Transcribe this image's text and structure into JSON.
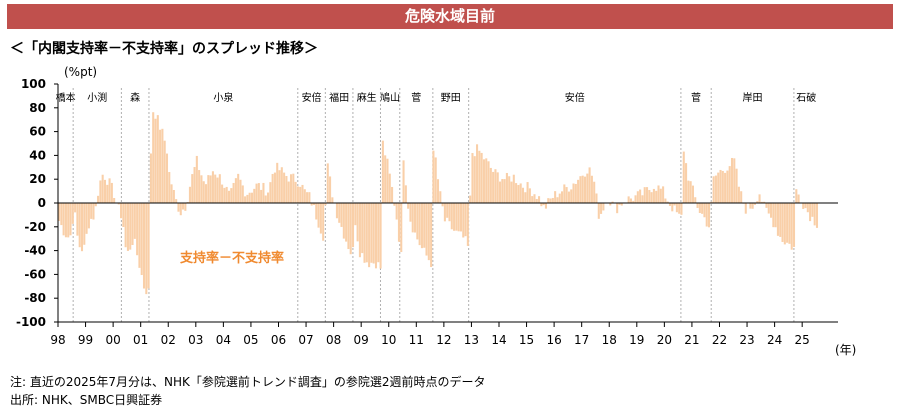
{
  "header": {
    "title": "危険水域目前"
  },
  "subtitle": "＜「内閣支持率－不支持率」のスプレッド推移＞",
  "notes": {
    "note1": "注: 直近の2025年7月分は、NHK「参院選前トレンド調査」の参院選2週前時点のデータ",
    "note2": "出所: NHK、SMBC日興証券"
  },
  "colors": {
    "header_bg": "#c0504d",
    "bar": "#f9cfa8",
    "annotation": "#f08a30",
    "divider": "#b0b0b0"
  },
  "chart_data": {
    "type": "bar",
    "title": "＜「内閣支持率－不支持率」のスプレッド推移＞",
    "ylabel": "(%pt)",
    "xlabel": "(年)",
    "ylim": [
      -100,
      100
    ],
    "yticks": [
      100,
      80,
      60,
      40,
      20,
      0,
      -20,
      -40,
      -60,
      -80,
      -100
    ],
    "xlim": [
      1998.0,
      2026.3
    ],
    "xtick_values": [
      1998,
      1999,
      2000,
      2001,
      2002,
      2003,
      2004,
      2005,
      2006,
      2007,
      2008,
      2009,
      2010,
      2011,
      2012,
      2013,
      2014,
      2015,
      2016,
      2017,
      2018,
      2019,
      2020,
      2021,
      2022,
      2023,
      2024,
      2025
    ],
    "xtick_labels": [
      "98",
      "99",
      "00",
      "01",
      "02",
      "03",
      "04",
      "05",
      "06",
      "07",
      "08",
      "09",
      "10",
      "11",
      "12",
      "13",
      "14",
      "15",
      "16",
      "17",
      "18",
      "19",
      "20",
      "21",
      "22",
      "23",
      "24",
      "25"
    ],
    "annotation": "支持率－不支持率",
    "eras": [
      {
        "name": "橋本",
        "start": 1998.0,
        "end": 1998.55
      },
      {
        "name": "小渕",
        "start": 1998.55,
        "end": 2000.3
      },
      {
        "name": "森",
        "start": 2000.3,
        "end": 2001.3
      },
      {
        "name": "小泉",
        "start": 2001.3,
        "end": 2006.7
      },
      {
        "name": "安倍",
        "start": 2006.7,
        "end": 2007.7
      },
      {
        "name": "福田",
        "start": 2007.7,
        "end": 2008.7
      },
      {
        "name": "麻生",
        "start": 2008.7,
        "end": 2009.7
      },
      {
        "name": "鳩山",
        "start": 2009.7,
        "end": 2010.4
      },
      {
        "name": "菅",
        "start": 2010.4,
        "end": 2011.6
      },
      {
        "name": "野田",
        "start": 2011.6,
        "end": 2012.9
      },
      {
        "name": "安倍",
        "start": 2012.9,
        "end": 2020.6
      },
      {
        "name": "菅",
        "start": 2020.6,
        "end": 2021.7
      },
      {
        "name": "岸田",
        "start": 2021.7,
        "end": 2024.7
      },
      {
        "name": "石破",
        "start": 2024.7,
        "end": 2025.6
      }
    ],
    "series": [
      {
        "name": "支持率－不支持率",
        "keypoints": [
          [
            1998.0,
            -15
          ],
          [
            1998.2,
            -25
          ],
          [
            1998.4,
            -30
          ],
          [
            1998.55,
            -5
          ],
          [
            1998.7,
            -35
          ],
          [
            1998.9,
            -40
          ],
          [
            1999.1,
            -15
          ],
          [
            1999.3,
            -10
          ],
          [
            1999.45,
            15
          ],
          [
            1999.6,
            25
          ],
          [
            1999.8,
            18
          ],
          [
            2000.0,
            8
          ],
          [
            2000.15,
            -5
          ],
          [
            2000.3,
            -12
          ],
          [
            2000.45,
            -45
          ],
          [
            2000.7,
            -30
          ],
          [
            2000.9,
            -50
          ],
          [
            2001.1,
            -72
          ],
          [
            2001.28,
            -75
          ],
          [
            2001.35,
            80
          ],
          [
            2001.5,
            75
          ],
          [
            2001.7,
            62
          ],
          [
            2001.9,
            48
          ],
          [
            2002.0,
            25
          ],
          [
            2002.2,
            5
          ],
          [
            2002.4,
            -8
          ],
          [
            2002.6,
            -2
          ],
          [
            2002.8,
            20
          ],
          [
            2003.0,
            35
          ],
          [
            2003.3,
            15
          ],
          [
            2003.6,
            28
          ],
          [
            2003.9,
            20
          ],
          [
            2004.2,
            5
          ],
          [
            2004.5,
            22
          ],
          [
            2004.8,
            8
          ],
          [
            2005.2,
            15
          ],
          [
            2005.6,
            10
          ],
          [
            2005.8,
            30
          ],
          [
            2006.0,
            28
          ],
          [
            2006.3,
            22
          ],
          [
            2006.6,
            20
          ],
          [
            2006.75,
            17
          ],
          [
            2006.9,
            10
          ],
          [
            2007.1,
            5
          ],
          [
            2007.4,
            -15
          ],
          [
            2007.6,
            -28
          ],
          [
            2007.75,
            30
          ],
          [
            2007.9,
            10
          ],
          [
            2008.1,
            -10
          ],
          [
            2008.4,
            -30
          ],
          [
            2008.65,
            -45
          ],
          [
            2008.75,
            -15
          ],
          [
            2008.9,
            -40
          ],
          [
            2009.2,
            -50
          ],
          [
            2009.5,
            -50
          ],
          [
            2009.68,
            -55
          ],
          [
            2009.75,
            50
          ],
          [
            2009.9,
            35
          ],
          [
            2010.1,
            10
          ],
          [
            2010.3,
            -20
          ],
          [
            2010.4,
            -45
          ],
          [
            2010.5,
            40
          ],
          [
            2010.7,
            -10
          ],
          [
            2010.9,
            -25
          ],
          [
            2011.2,
            -40
          ],
          [
            2011.5,
            -50
          ],
          [
            2011.65,
            40
          ],
          [
            2011.8,
            10
          ],
          [
            2012.0,
            -15
          ],
          [
            2012.4,
            -25
          ],
          [
            2012.7,
            -30
          ],
          [
            2012.88,
            -40
          ],
          [
            2012.95,
            42
          ],
          [
            2013.2,
            45
          ],
          [
            2013.5,
            35
          ],
          [
            2013.8,
            25
          ],
          [
            2014.2,
            20
          ],
          [
            2014.5,
            22
          ],
          [
            2014.8,
            15
          ],
          [
            2015.1,
            12
          ],
          [
            2015.4,
            5
          ],
          [
            2015.6,
            -5
          ],
          [
            2015.9,
            5
          ],
          [
            2016.2,
            10
          ],
          [
            2016.6,
            15
          ],
          [
            2016.9,
            22
          ],
          [
            2017.2,
            30
          ],
          [
            2017.4,
            20
          ],
          [
            2017.6,
            -12
          ],
          [
            2017.9,
            5
          ],
          [
            2018.2,
            -5
          ],
          [
            2018.5,
            2
          ],
          [
            2018.9,
            5
          ],
          [
            2019.2,
            8
          ],
          [
            2019.6,
            15
          ],
          [
            2019.9,
            10
          ],
          [
            2020.2,
            -2
          ],
          [
            2020.45,
            -10
          ],
          [
            2020.58,
            -15
          ],
          [
            2020.65,
            48
          ],
          [
            2020.8,
            25
          ],
          [
            2021.0,
            10
          ],
          [
            2021.2,
            -5
          ],
          [
            2021.4,
            -12
          ],
          [
            2021.6,
            -20
          ],
          [
            2021.75,
            20
          ],
          [
            2021.9,
            25
          ],
          [
            2022.2,
            30
          ],
          [
            2022.5,
            35
          ],
          [
            2022.7,
            10
          ],
          [
            2022.9,
            -5
          ],
          [
            2023.2,
            -2
          ],
          [
            2023.4,
            10
          ],
          [
            2023.6,
            -5
          ],
          [
            2023.9,
            -15
          ],
          [
            2024.2,
            -30
          ],
          [
            2024.5,
            -35
          ],
          [
            2024.68,
            -38
          ],
          [
            2024.75,
            10
          ],
          [
            2024.9,
            5
          ],
          [
            2025.1,
            -5
          ],
          [
            2025.3,
            -12
          ],
          [
            2025.55,
            -18
          ]
        ]
      }
    ]
  }
}
